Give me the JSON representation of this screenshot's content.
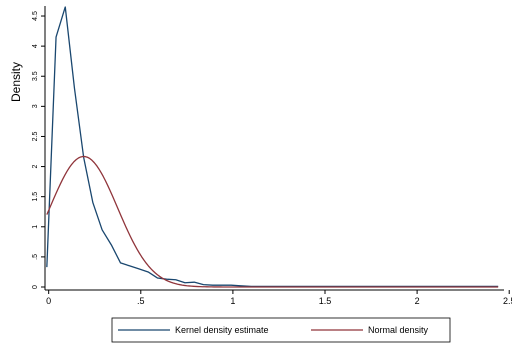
{
  "chart_data": {
    "type": "line",
    "title": "",
    "xlabel": "",
    "ylabel": "Density",
    "xlim": [
      -0.02,
      2.45
    ],
    "ylim": [
      0,
      4.6
    ],
    "grid": false,
    "legend_position": "bottom",
    "x_ticks": [
      {
        "value": 0,
        "label": "0"
      },
      {
        "value": 0.5,
        "label": ".5"
      },
      {
        "value": 1,
        "label": "1"
      },
      {
        "value": 1.5,
        "label": "1.5"
      },
      {
        "value": 2,
        "label": "2"
      },
      {
        "value": 2.5,
        "label": "2.5"
      }
    ],
    "y_ticks": [
      {
        "value": 0,
        "label": "0"
      },
      {
        "value": 0.5,
        "label": ".5"
      },
      {
        "value": 1,
        "label": "1"
      },
      {
        "value": 1.5,
        "label": "1.5"
      },
      {
        "value": 2,
        "label": "2"
      },
      {
        "value": 2.5,
        "label": "2.5"
      },
      {
        "value": 3,
        "label": "3"
      },
      {
        "value": 3.5,
        "label": "3.5"
      },
      {
        "value": 4,
        "label": "4"
      },
      {
        "value": 4.5,
        "label": "4.5"
      }
    ],
    "series": [
      {
        "name": "Kernel density estimate",
        "color": "#1a476f",
        "points": [
          [
            -0.01,
            0.33
          ],
          [
            0.04,
            4.15
          ],
          [
            0.09,
            4.65
          ],
          [
            0.14,
            3.3
          ],
          [
            0.19,
            2.15
          ],
          [
            0.24,
            1.4
          ],
          [
            0.29,
            0.95
          ],
          [
            0.34,
            0.7
          ],
          [
            0.39,
            0.4
          ],
          [
            0.44,
            0.35
          ],
          [
            0.49,
            0.3
          ],
          [
            0.54,
            0.25
          ],
          [
            0.59,
            0.15
          ],
          [
            0.64,
            0.13
          ],
          [
            0.69,
            0.12
          ],
          [
            0.74,
            0.07
          ],
          [
            0.79,
            0.08
          ],
          [
            0.84,
            0.04
          ],
          [
            0.89,
            0.03
          ],
          [
            0.94,
            0.03
          ],
          [
            0.99,
            0.03
          ],
          [
            1.04,
            0.02
          ],
          [
            1.1,
            0.01
          ],
          [
            1.2,
            0.01
          ],
          [
            1.3,
            0.01
          ],
          [
            1.4,
            0.01
          ],
          [
            1.5,
            0.01
          ],
          [
            1.6,
            0.01
          ],
          [
            1.8,
            0.01
          ],
          [
            2.0,
            0.01
          ],
          [
            2.2,
            0.01
          ],
          [
            2.44,
            0.01
          ]
        ]
      },
      {
        "name": "Normal density",
        "color": "#90353b",
        "normal": {
          "mean": 0.19,
          "sd": 0.184
        },
        "x_range": [
          -0.01,
          2.44
        ]
      }
    ]
  }
}
